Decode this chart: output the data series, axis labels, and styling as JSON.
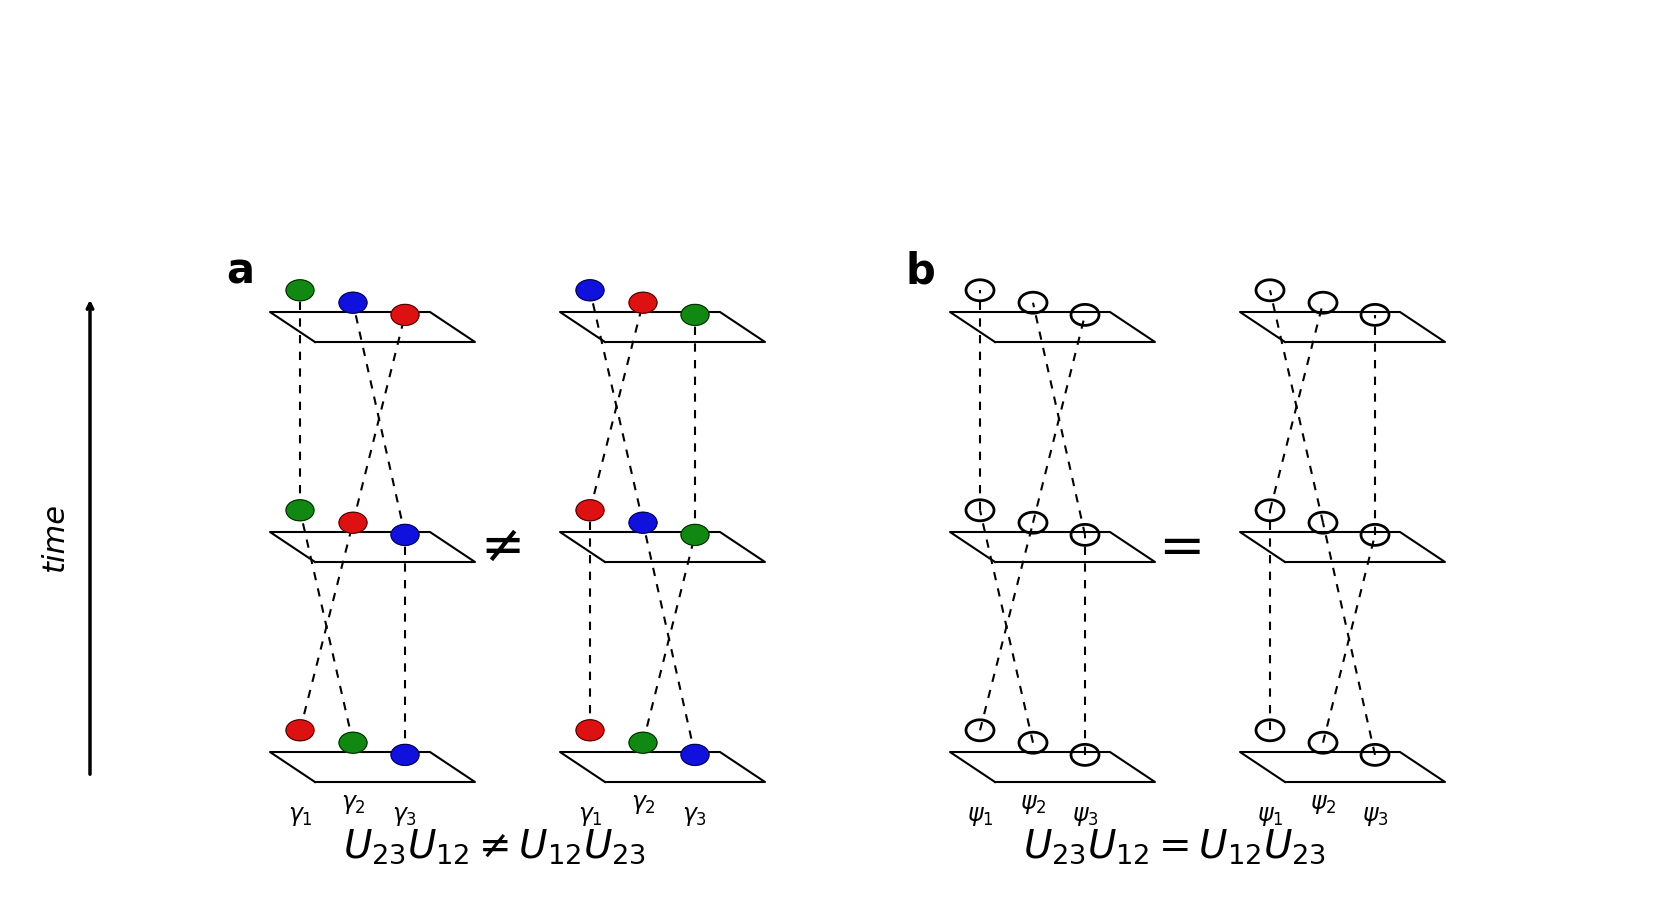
{
  "bg_color": "#ffffff",
  "panel_a_label": "a",
  "panel_b_label": "b",
  "equation_a": "$U_{23}U_{12} \\neq U_{12}U_{23}$",
  "equation_b": "$U_{23}U_{12} = U_{12}U_{23}$",
  "time_label": "time",
  "colors": {
    "red": "#dd1111",
    "green": "#118811",
    "blue": "#1111dd",
    "white": "#ffffff",
    "black": "#000000"
  },
  "neq_symbol": "$\\neq$",
  "eq_symbol": "$=$"
}
